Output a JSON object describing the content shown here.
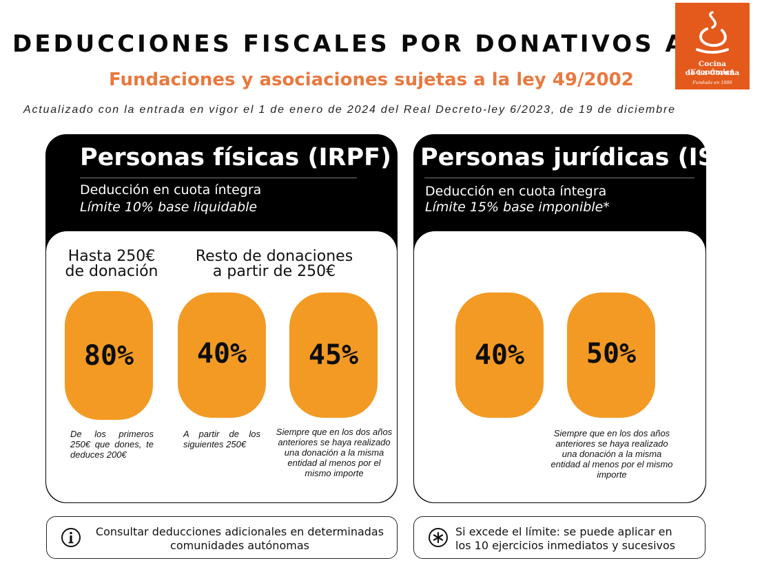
{
  "header": {
    "title": "DEDUCCIONES FISCALES POR DONATIVOS A",
    "subtitle": "Fundaciones y asociaciones sujetas a la ley 49/2002",
    "update_note": "Actualizado con la entrada en vigor el 1 de enero de 2024 del Real Decreto-ley 6/2023, de 19 de diciembre"
  },
  "logo": {
    "line1": "Cocina Económica",
    "line2": "de La Coruña",
    "line3": "Fundada en 1886"
  },
  "colors": {
    "accent_orange": "#f39a24",
    "subtitle_orange": "#e8793f",
    "logo_background": "#e35a1c",
    "panel_black": "#000000"
  },
  "panels": [
    {
      "title": "Personas físicas (IRPF)",
      "line1": "Deducción en cuota íntegra",
      "line2": "Límite 10% base liquidable",
      "groups": [
        {
          "label_line1": "Hasta 250€",
          "label_line2": "de donación"
        },
        {
          "label_line1": "Resto de donaciones",
          "label_line2": "a partir de 250€"
        }
      ],
      "rates": [
        {
          "value": "80%",
          "note": "De los primeros 250€ que dones, te deduces 200€"
        },
        {
          "value": "40%",
          "note": "A partir de los siguientes 250€"
        },
        {
          "value": "45%",
          "note": "Siempre que en los dos años anteriores se haya realizado una donación a la misma entidad al menos por el mismo importe"
        }
      ]
    },
    {
      "title": "Personas jurídicas (IS)",
      "line1": "Deducción en cuota íntegra",
      "line2": "Límite 15% base imponible*",
      "rates": [
        {
          "value": "40%"
        },
        {
          "value": "50%",
          "note": "Siempre que en los dos años anteriores se haya realizado una donación a la misma entidad al menos por el mismo importe"
        }
      ]
    }
  ],
  "footer": {
    "info_icon": "info-icon",
    "info_line1": "Consultar deducciones adicionales en determinadas",
    "info_line2": "comunidades autónomas",
    "asterisk_icon": "asterisk-icon",
    "asterisk_line1": "Si excede el límite: se puede aplicar en",
    "asterisk_line2": "los 10 ejercicios inmediatos y sucesivos"
  }
}
